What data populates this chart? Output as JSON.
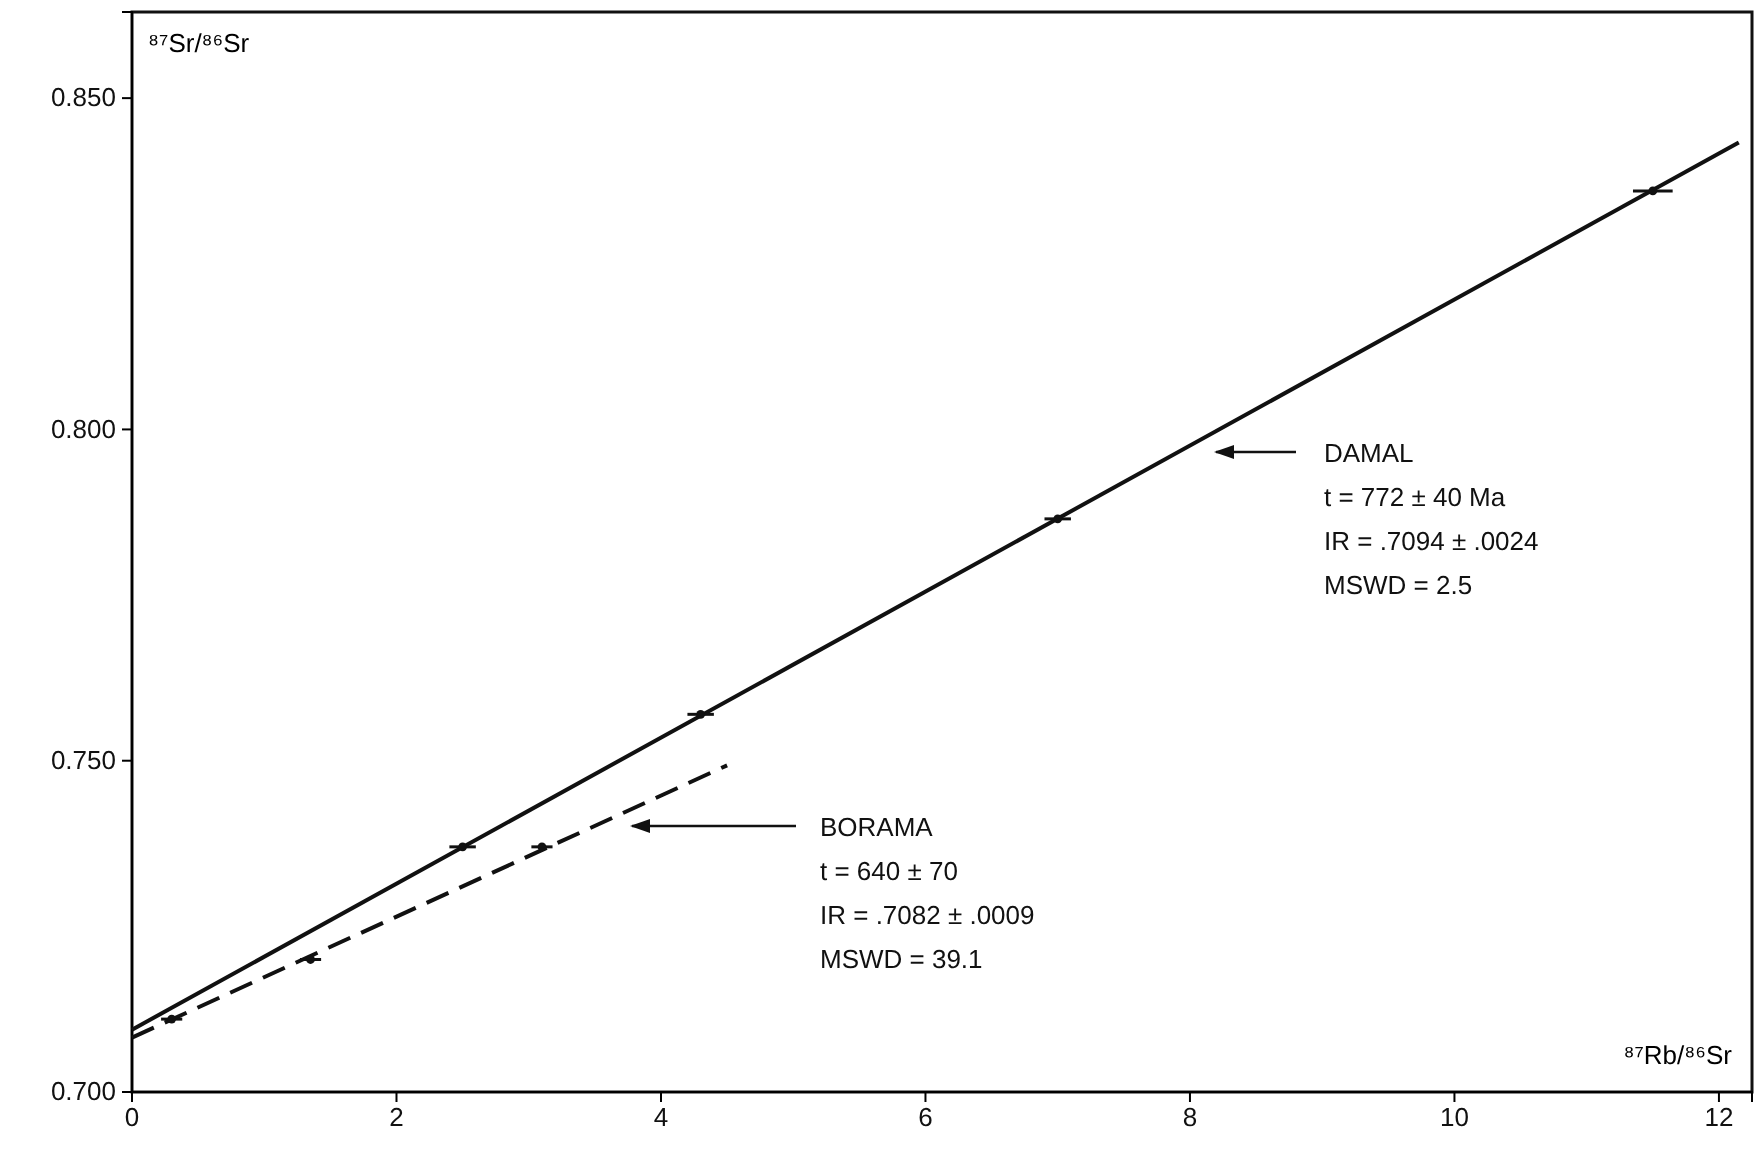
{
  "chart_data": {
    "type": "scatter",
    "xlabel": "⁸⁷Rb/⁸⁶Sr",
    "ylabel": "⁸⁷Sr/⁸⁶Sr",
    "xlim": [
      0,
      12.25
    ],
    "ylim": [
      0.7,
      0.863
    ],
    "xticks": [
      0,
      2,
      4,
      6,
      8,
      10,
      12
    ],
    "yticks": [
      {
        "value": 0.7,
        "label": "0.700"
      },
      {
        "value": 0.75,
        "label": "0.750"
      },
      {
        "value": 0.8,
        "label": "0.800"
      },
      {
        "value": 0.85,
        "label": "0.850"
      }
    ],
    "grid": false,
    "series": [
      {
        "type": "line",
        "color": "#111111",
        "line_style": "solid",
        "x": [
          0,
          12.15
        ],
        "values": [
          0.7094,
          0.8433
        ]
      },
      {
        "type": "line",
        "color": "#111111",
        "line_style": "dashed",
        "x": [
          0,
          4.5
        ],
        "values": [
          0.7082,
          0.7493
        ]
      },
      {
        "marker": "circle",
        "color": "#111111",
        "x": [
          2.5,
          4.3,
          7,
          11.5
        ],
        "values": [
          0.737,
          0.757,
          0.7865,
          0.836
        ],
        "xerrors": [
          0.1,
          0.1,
          0.1,
          0.15
        ]
      },
      {
        "marker": "circle",
        "color": "#111111",
        "x": [
          0.3,
          1.35,
          3.1
        ],
        "values": [
          0.711,
          0.72,
          0.737
        ],
        "xerrors": [
          0.08,
          0.08,
          0.08
        ]
      }
    ],
    "annotations": [
      "DAMAL\nt = 772 ± 40 Ma\nIR = .7094 ± .0024\nMSWD = 2.5",
      "BORAMA\nt = 640 ± 70\nIR = .7082 ± .0009\nMSWD = 39.1"
    ]
  }
}
